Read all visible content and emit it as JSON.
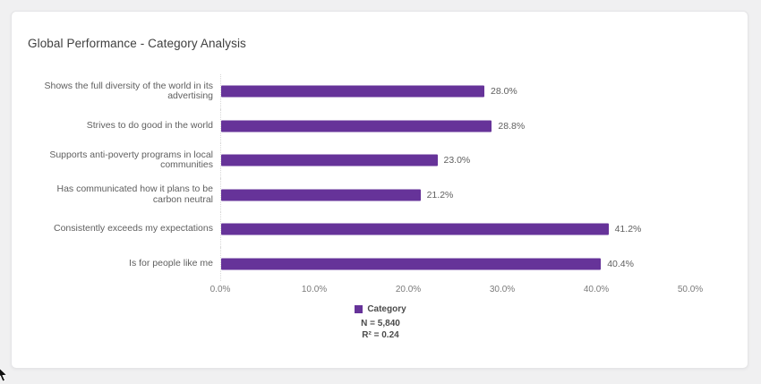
{
  "page": {
    "background": "#f0f0f1"
  },
  "card": {
    "title": "Global Performance - Category Analysis"
  },
  "chart_data": {
    "type": "bar",
    "orientation": "horizontal",
    "title": "Global Performance - Category Analysis",
    "categories": [
      "Shows the full diversity of the world in its advertising",
      "Strives to do good in the world",
      "Supports anti-poverty programs in local communities",
      "Has communicated how it plans to be carbon neutral",
      "Consistently exceeds my expectations",
      "Is for people like me"
    ],
    "values": [
      28.0,
      28.8,
      23.0,
      21.2,
      41.2,
      40.4
    ],
    "value_labels": [
      "28.0%",
      "28.8%",
      "23.0%",
      "21.2%",
      "41.2%",
      "40.4%"
    ],
    "xlim": [
      0,
      50
    ],
    "x_ticks": [
      {
        "value": 0,
        "label": "0.0%"
      },
      {
        "value": 10,
        "label": "10.0%"
      },
      {
        "value": 20,
        "label": "20.0%"
      },
      {
        "value": 30,
        "label": "30.0%"
      },
      {
        "value": 40,
        "label": "40.0%"
      },
      {
        "value": 50,
        "label": "50.0%"
      }
    ],
    "grid": "off",
    "bar_color": "#663399",
    "legend": {
      "position": "bottom-center",
      "series_label": "Category",
      "n_label": "N = 5,840",
      "r2_label": "R² = 0.24"
    }
  }
}
